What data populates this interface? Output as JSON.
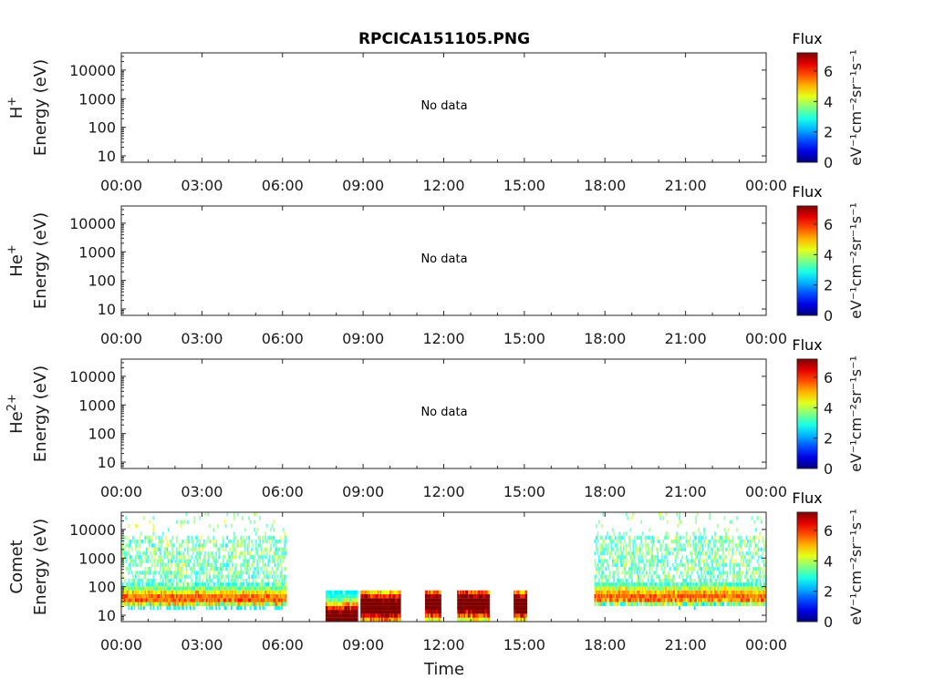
{
  "chart_data": {
    "type": "heatmap",
    "title": "RPCICA151105.PNG",
    "xlabel": "Time",
    "x_ticks": [
      "00:00",
      "03:00",
      "06:00",
      "09:00",
      "12:00",
      "15:00",
      "18:00",
      "21:00",
      "00:00"
    ],
    "y_ticks": [
      "10",
      "100",
      "1000",
      "10000"
    ],
    "ylim_eV": [
      6,
      40000
    ],
    "colorbar": {
      "title": "Flux",
      "label": "eV⁻¹cm⁻²sr⁻¹s⁻¹",
      "ticks": [
        "0",
        "2",
        "4",
        "6"
      ],
      "range": [
        0,
        7.2
      ],
      "colormap": "jet"
    },
    "panels": [
      {
        "species": "H",
        "sup": "+",
        "ylabel": "Energy (eV)",
        "status": "No data"
      },
      {
        "species": "He",
        "sup": "+",
        "ylabel": "Energy (eV)",
        "status": "No data"
      },
      {
        "species": "He",
        "sup": "2+",
        "ylabel": "Energy (eV)",
        "status": "No data"
      },
      {
        "species": "Comet",
        "sup": "",
        "ylabel": "Energy (eV)",
        "status": "",
        "segments": [
          {
            "start_h": 0.0,
            "end_h": 6.15,
            "peak_energy_eV": 35,
            "peak_flux": 6.0,
            "type": "solar-wind-like"
          },
          {
            "start_h": 7.6,
            "end_h": 8.8,
            "peak_energy_eV": 8,
            "peak_flux": 7.0,
            "type": "low-energy"
          },
          {
            "start_h": 8.9,
            "end_h": 10.4,
            "peak_energy_eV": 20,
            "peak_flux": 6.8,
            "type": "low-energy"
          },
          {
            "start_h": 11.3,
            "end_h": 11.9,
            "peak_energy_eV": 25,
            "peak_flux": 6.8,
            "type": "low-energy"
          },
          {
            "start_h": 12.5,
            "end_h": 13.7,
            "peak_energy_eV": 25,
            "peak_flux": 6.8,
            "type": "low-energy"
          },
          {
            "start_h": 14.6,
            "end_h": 15.1,
            "peak_energy_eV": 22,
            "peak_flux": 6.6,
            "type": "low-energy"
          },
          {
            "start_h": 17.6,
            "end_h": 24.0,
            "peak_energy_eV": 40,
            "peak_flux": 6.0,
            "type": "solar-wind-like"
          }
        ]
      }
    ]
  }
}
